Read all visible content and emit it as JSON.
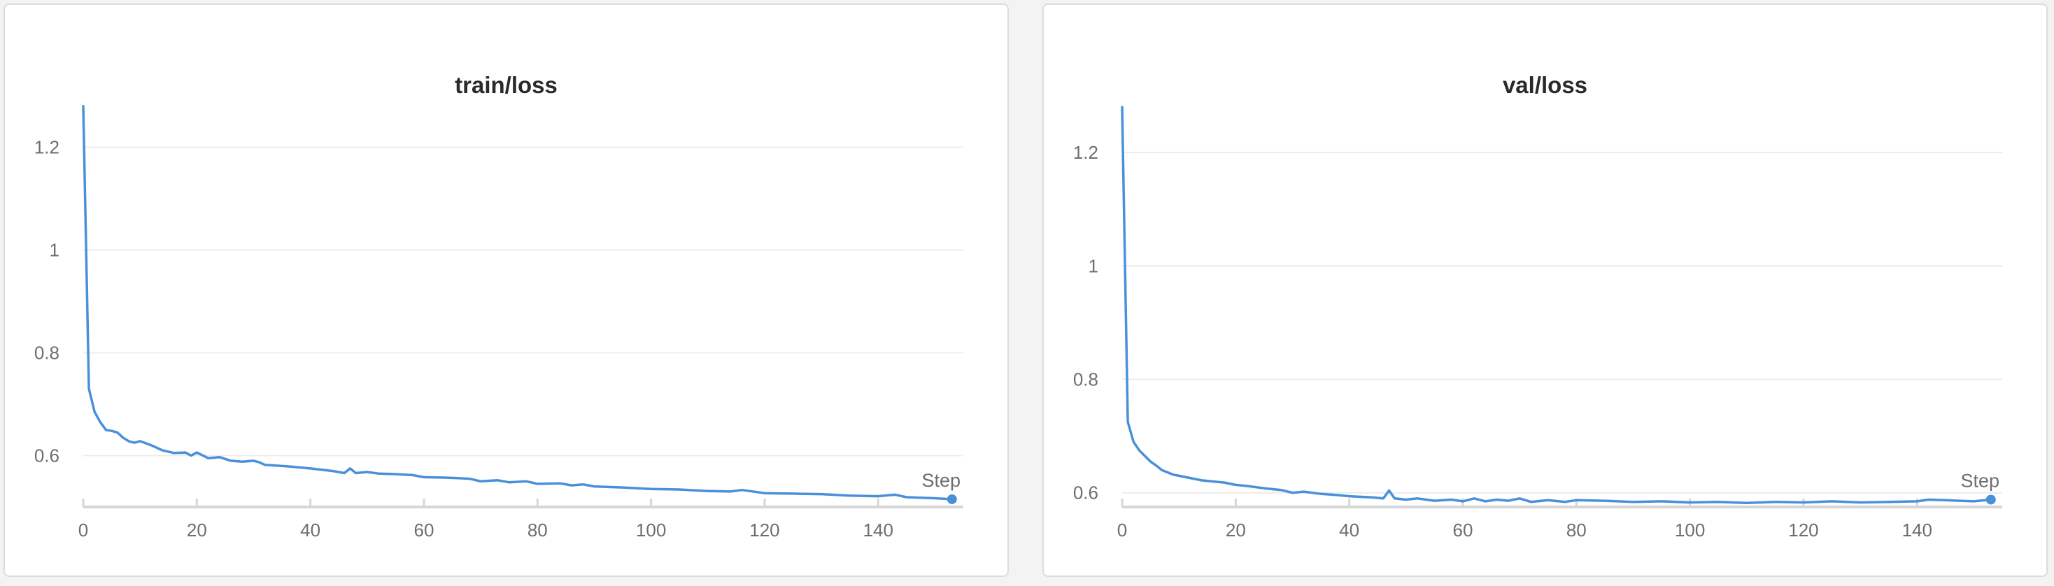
{
  "colors": {
    "line": "#4a90d9",
    "grid": "#ececec",
    "axis": "#d6d6d6",
    "tick_text": "#6e6e6e",
    "title_text": "#2a2a2a"
  },
  "chart_data": [
    {
      "type": "line",
      "title": "train/loss",
      "xlabel": "Step",
      "ylabel": "",
      "xlim": [
        0,
        155
      ],
      "ylim": [
        0.5,
        1.3
      ],
      "xticks": [
        0,
        20,
        40,
        60,
        80,
        100,
        120,
        140
      ],
      "yticks": [
        0.6,
        0.8,
        1,
        1.2
      ],
      "ytick_labels": [
        "0.6",
        "0.8",
        "1",
        "1.2"
      ],
      "grid": true,
      "legend": "none",
      "series": [
        {
          "x": [
            0,
            1,
            2,
            3,
            4,
            5,
            6,
            7,
            8,
            9,
            10,
            12,
            14,
            16,
            18,
            19,
            20,
            22,
            24,
            26,
            28,
            30,
            31,
            32,
            36,
            40,
            44,
            46,
            47,
            48,
            50,
            52,
            55,
            58,
            60,
            64,
            66,
            68,
            70,
            73,
            75,
            78,
            80,
            84,
            86,
            88,
            90,
            95,
            100,
            105,
            110,
            114,
            116,
            120,
            125,
            130,
            135,
            140,
            143,
            145,
            150,
            153
          ],
          "y": [
            1.28,
            0.73,
            0.685,
            0.665,
            0.65,
            0.648,
            0.645,
            0.635,
            0.628,
            0.625,
            0.628,
            0.62,
            0.61,
            0.605,
            0.606,
            0.6,
            0.606,
            0.595,
            0.597,
            0.59,
            0.588,
            0.59,
            0.587,
            0.582,
            0.579,
            0.575,
            0.57,
            0.566,
            0.575,
            0.566,
            0.568,
            0.565,
            0.564,
            0.562,
            0.558,
            0.557,
            0.556,
            0.555,
            0.55,
            0.552,
            0.548,
            0.55,
            0.545,
            0.546,
            0.542,
            0.544,
            0.54,
            0.538,
            0.535,
            0.534,
            0.531,
            0.53,
            0.533,
            0.527,
            0.526,
            0.525,
            0.522,
            0.521,
            0.524,
            0.519,
            0.517,
            0.515
          ]
        }
      ]
    },
    {
      "type": "line",
      "title": "val/loss",
      "xlabel": "Step",
      "ylabel": "",
      "xlim": [
        0,
        155
      ],
      "ylim": [
        0.575,
        1.3
      ],
      "xticks": [
        0,
        20,
        40,
        60,
        80,
        100,
        120,
        140
      ],
      "yticks": [
        0.6,
        0.8,
        1,
        1.2
      ],
      "ytick_labels": [
        "0.6",
        "0.8",
        "1",
        "1.2"
      ],
      "grid": true,
      "legend": "none",
      "series": [
        {
          "x": [
            0,
            1,
            2,
            3,
            4,
            5,
            6,
            7,
            8,
            9,
            10,
            12,
            14,
            16,
            18,
            20,
            22,
            25,
            28,
            30,
            32,
            35,
            38,
            40,
            44,
            46,
            47,
            48,
            50,
            52,
            55,
            58,
            60,
            62,
            64,
            66,
            68,
            70,
            72,
            75,
            78,
            80,
            85,
            90,
            95,
            100,
            105,
            110,
            115,
            120,
            125,
            130,
            135,
            140,
            142,
            145,
            150,
            153
          ],
          "y": [
            1.28,
            0.725,
            0.69,
            0.675,
            0.665,
            0.655,
            0.648,
            0.64,
            0.636,
            0.632,
            0.63,
            0.626,
            0.622,
            0.62,
            0.618,
            0.614,
            0.612,
            0.608,
            0.605,
            0.6,
            0.602,
            0.598,
            0.596,
            0.594,
            0.592,
            0.59,
            0.604,
            0.59,
            0.588,
            0.59,
            0.586,
            0.588,
            0.585,
            0.59,
            0.585,
            0.588,
            0.586,
            0.59,
            0.584,
            0.587,
            0.584,
            0.587,
            0.586,
            0.584,
            0.585,
            0.583,
            0.584,
            0.582,
            0.584,
            0.583,
            0.585,
            0.583,
            0.584,
            0.585,
            0.588,
            0.587,
            0.585,
            0.588
          ]
        }
      ]
    }
  ]
}
